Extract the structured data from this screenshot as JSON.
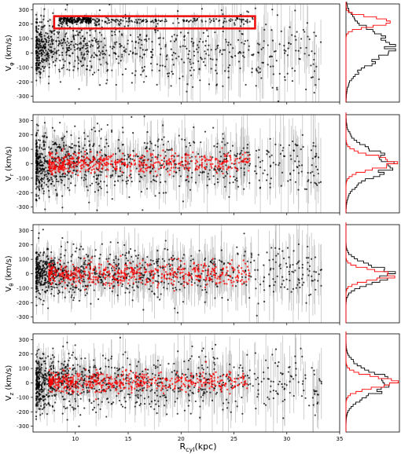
{
  "chart_data": {
    "type": "scatter",
    "xlabel": "R_cyl(kpc)",
    "xlim": [
      6,
      35
    ],
    "x_ticks": [
      10,
      15,
      20,
      25,
      30,
      35
    ],
    "y_ticks": [
      -300,
      -200,
      -100,
      0,
      100,
      200,
      300
    ],
    "ylim": [
      -340,
      340
    ],
    "grid": false,
    "colors": {
      "black_series": "#000000",
      "red_series": "#ff0000",
      "error_bars": "#bbbbbb",
      "highlight_box": "#ee1111"
    },
    "panels": [
      {
        "ylabel_base": "V",
        "ylabel_sub": "φ",
        "ylabel_unit": "(km/s)",
        "highlight_box": {
          "x": [
            8,
            27
          ],
          "y": [
            170,
            255
          ]
        },
        "black": {
          "centers": [
            [
              6.5,
              40
            ],
            [
              8,
              45
            ],
            [
              9.5,
              60
            ],
            [
              12,
              40
            ],
            [
              15,
              30
            ],
            [
              18,
              25
            ],
            [
              22,
              20
            ],
            [
              26,
              15
            ],
            [
              30,
              10
            ],
            [
              33,
              0
            ]
          ],
          "spread": [
            [
              6.5,
              95
            ],
            [
              10,
              100
            ],
            [
              15,
              110
            ],
            [
              20,
              120
            ],
            [
              25,
              130
            ],
            [
              30,
              140
            ],
            [
              33,
              150
            ]
          ],
          "clump": {
            "x": [
              8.5,
              11.5
            ],
            "y": 228,
            "spread": 12
          }
        },
        "red": null,
        "hist_black_peak": 40,
        "hist_black_width": 110,
        "hist_red_peak": 215,
        "hist_red_width": 30
      },
      {
        "ylabel_base": "V",
        "ylabel_sub": "r",
        "ylabel_unit": "(km/s)",
        "highlight_box": null,
        "black": {
          "centers": [
            [
              6.5,
              0
            ],
            [
              35,
              0
            ]
          ],
          "spread": [
            [
              6.5,
              110
            ],
            [
              15,
              115
            ],
            [
              25,
              110
            ],
            [
              33,
              100
            ]
          ]
        },
        "red": {
          "centers": [
            [
              8,
              5
            ],
            [
              14,
              5
            ],
            [
              20,
              10
            ],
            [
              26,
              15
            ]
          ],
          "x_range": [
            7.5,
            26.5
          ],
          "spread": 35
        },
        "hist_black_peak": 0,
        "hist_black_width": 95,
        "hist_red_peak": 10,
        "hist_red_width": 45
      },
      {
        "ylabel_base": "V",
        "ylabel_sub": "θ",
        "ylabel_unit": "(km/s)",
        "highlight_box": null,
        "black": {
          "centers": [
            [
              6.5,
              0
            ],
            [
              35,
              10
            ]
          ],
          "spread": [
            [
              6.5,
              85
            ],
            [
              15,
              90
            ],
            [
              25,
              95
            ],
            [
              33,
              100
            ]
          ]
        },
        "red": {
          "centers": [
            [
              8,
              0
            ],
            [
              15,
              -5
            ],
            [
              22,
              0
            ],
            [
              26,
              0
            ]
          ],
          "x_range": [
            7.5,
            26.5
          ],
          "spread": 40
        },
        "hist_black_peak": 0,
        "hist_black_width": 60,
        "hist_red_peak": -10,
        "hist_red_width": 35
      },
      {
        "ylabel_base": "V",
        "ylabel_sub": "z",
        "ylabel_unit": "(km/s)",
        "highlight_box": null,
        "black": {
          "centers": [
            [
              6.5,
              0
            ],
            [
              35,
              0
            ]
          ],
          "spread": [
            [
              6.5,
              100
            ],
            [
              15,
              100
            ],
            [
              25,
              95
            ],
            [
              33,
              90
            ]
          ]
        },
        "red": {
          "centers": [
            [
              8,
              5
            ],
            [
              15,
              5
            ],
            [
              20,
              10
            ],
            [
              26,
              15
            ]
          ],
          "x_range": [
            7.5,
            26.5
          ],
          "spread": 35
        },
        "hist_black_peak": 0,
        "hist_black_width": 80,
        "hist_red_peak": 5,
        "hist_red_width": 40
      }
    ]
  }
}
